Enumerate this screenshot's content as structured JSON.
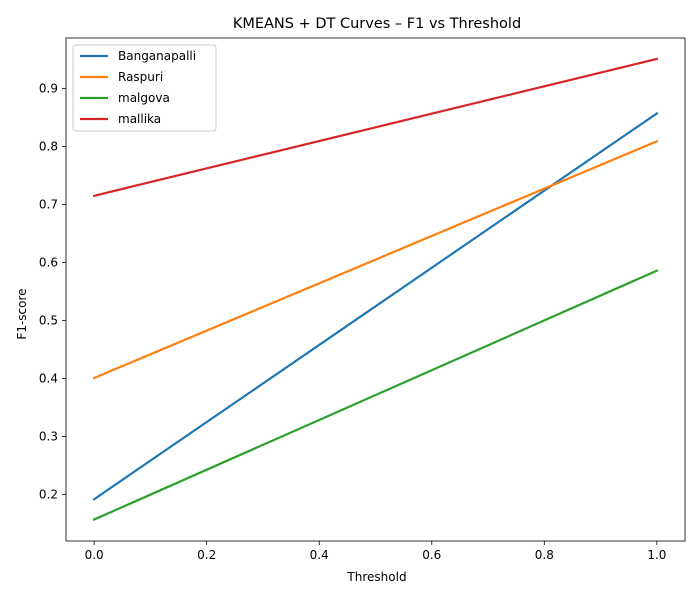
{
  "chart_data": {
    "type": "line",
    "title": "KMEANS + DT Curves – F1 vs Threshold",
    "xlabel": "Threshold",
    "ylabel": "F1-score",
    "x": [
      0.0,
      1.0
    ],
    "xlim": [
      -0.05,
      1.05
    ],
    "ylim": [
      0.12,
      0.987
    ],
    "xticks": [
      0.0,
      0.2,
      0.4,
      0.6,
      0.8,
      1.0
    ],
    "xtick_labels": [
      "0.0",
      "0.2",
      "0.4",
      "0.6",
      "0.8",
      "1.0"
    ],
    "yticks": [
      0.2,
      0.3,
      0.4,
      0.5,
      0.6,
      0.7,
      0.8,
      0.9
    ],
    "ytick_labels": [
      "0.2",
      "0.3",
      "0.4",
      "0.5",
      "0.6",
      "0.7",
      "0.8",
      "0.9"
    ],
    "grid": false,
    "legend_position": "upper-left",
    "series": [
      {
        "name": "Banganapalli",
        "color": "#1f77b4",
        "values": [
          0.192,
          0.857
        ]
      },
      {
        "name": "Raspuri",
        "color": "#ff7f0e",
        "values": [
          0.401,
          0.809
        ]
      },
      {
        "name": "malgova",
        "color": "#2ca02c",
        "values": [
          0.157,
          0.586
        ]
      },
      {
        "name": "mallika",
        "color": "#d62728",
        "values": [
          0.715,
          0.951
        ]
      }
    ]
  }
}
